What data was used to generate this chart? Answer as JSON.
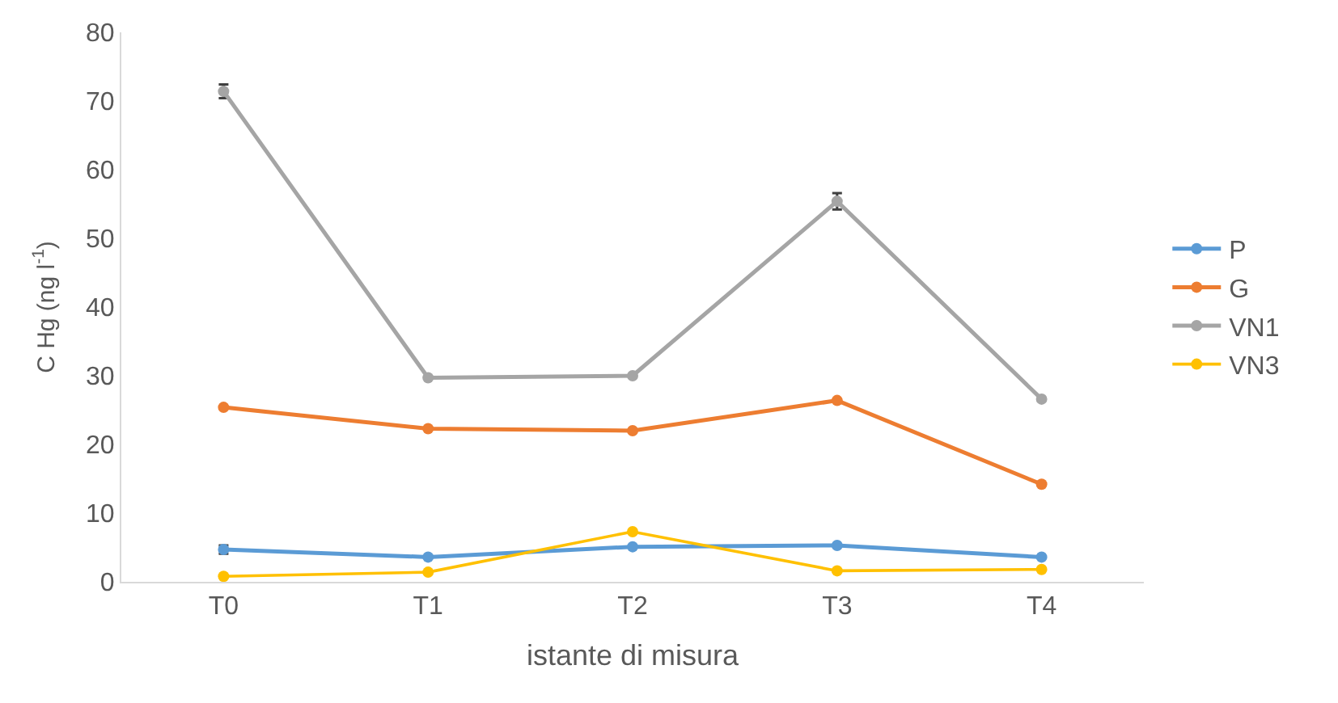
{
  "chart_data": {
    "type": "line",
    "xlabel": "istante di misura",
    "ylabel": "C Hg (ng l$^{-1}$)",
    "categories": [
      "T0",
      "T1",
      "T2",
      "T3",
      "T4"
    ],
    "series": [
      {
        "name": "P",
        "color": "#5b9bd5",
        "values": [
          4.7,
          3.6,
          5.1,
          5.3,
          3.6
        ],
        "errors": [
          0.6,
          null,
          null,
          null,
          null
        ]
      },
      {
        "name": "G",
        "color": "#ed7d31",
        "values": [
          25.4,
          22.3,
          22.0,
          26.4,
          14.2
        ]
      },
      {
        "name": "VN1",
        "color": "#a5a5a5",
        "values": [
          71.4,
          29.7,
          30.0,
          55.4,
          26.6
        ],
        "errors": [
          1.0,
          null,
          null,
          1.2,
          null
        ]
      },
      {
        "name": "VN3",
        "color": "#ffc000",
        "values": [
          0.8,
          1.4,
          7.3,
          1.6,
          1.8
        ]
      }
    ],
    "ylim": [
      0,
      80
    ],
    "yticks": [
      0,
      10,
      20,
      30,
      40,
      50,
      60,
      70,
      80
    ],
    "legend": "right",
    "marker": "circle",
    "line_style": "solid"
  }
}
